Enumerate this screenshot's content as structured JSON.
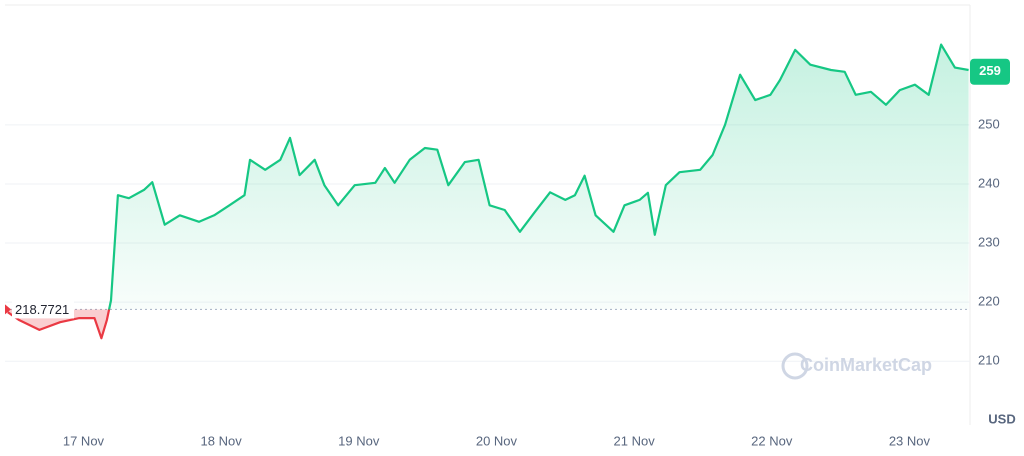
{
  "chart_data": {
    "type": "line",
    "x": [
      16.45,
      16.53,
      16.68,
      16.83,
      16.97,
      17.08,
      17.13,
      17.17,
      17.2,
      17.25,
      17.33,
      17.44,
      17.5,
      17.59,
      17.7,
      17.84,
      17.95,
      18.06,
      18.17,
      18.21,
      18.32,
      18.43,
      18.5,
      18.57,
      18.68,
      18.75,
      18.85,
      18.97,
      19.12,
      19.19,
      19.26,
      19.37,
      19.48,
      19.57,
      19.65,
      19.77,
      19.87,
      19.95,
      20.06,
      20.17,
      20.28,
      20.39,
      20.5,
      20.57,
      20.64,
      20.72,
      20.85,
      20.93,
      21.04,
      21.1,
      21.15,
      21.23,
      21.33,
      21.48,
      21.57,
      21.66,
      21.77,
      21.88,
      21.99,
      22.06,
      22.17,
      22.28,
      22.43,
      22.53,
      22.61,
      22.72,
      22.83,
      22.93,
      23.04,
      23.14,
      23.23,
      23.33,
      23.43
    ],
    "series": [
      {
        "name": "USD",
        "color": "#16c784",
        "values": [
          218.3,
          217.0,
          215.3,
          216.6,
          217.3,
          217.3,
          213.9,
          217.0,
          220.3,
          238.1,
          237.6,
          239.0,
          240.3,
          233.1,
          234.7,
          233.6,
          234.7,
          236.4,
          238.1,
          244.1,
          242.4,
          244.1,
          247.8,
          241.5,
          244.1,
          239.8,
          236.4,
          239.8,
          240.2,
          242.7,
          240.2,
          244.1,
          246.1,
          245.8,
          239.8,
          243.7,
          244.1,
          236.4,
          235.6,
          231.9,
          235.3,
          238.6,
          237.3,
          238.1,
          241.4,
          234.7,
          231.9,
          236.4,
          237.3,
          238.5,
          231.4,
          239.8,
          242.0,
          242.4,
          244.9,
          250.0,
          258.5,
          254.2,
          255.1,
          257.6,
          262.7,
          260.2,
          259.3,
          259.0,
          255.1,
          255.6,
          253.4,
          255.9,
          256.8,
          255.1,
          263.6,
          259.7,
          259.3
        ]
      }
    ],
    "below_color": "#ea3943",
    "baseline": 218.7721,
    "current_price": 259,
    "currency": "USD",
    "watermark": "CoinMarketCap",
    "xlim": [
      16.43,
      23.44
    ],
    "xticks": [
      {
        "value": 17,
        "label": "17 Nov"
      },
      {
        "value": 18,
        "label": "18 Nov"
      },
      {
        "value": 19,
        "label": "19 Nov"
      },
      {
        "value": 20,
        "label": "20 Nov"
      },
      {
        "value": 21,
        "label": "21 Nov"
      },
      {
        "value": 22,
        "label": "22 Nov"
      },
      {
        "value": 23,
        "label": "23 Nov"
      }
    ],
    "ylim": [
      199.2,
      270.3
    ],
    "yticks": [
      210,
      220,
      230,
      240,
      250
    ],
    "grid": true
  }
}
